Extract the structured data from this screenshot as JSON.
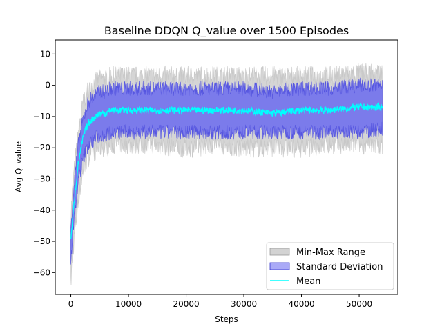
{
  "chart_data": {
    "type": "area",
    "title": "Baseline DDQN Q_value over 1500 Episodes",
    "xlabel": "Steps",
    "ylabel": "Avg Q_value",
    "xlim": [
      -2700,
      56700
    ],
    "ylim": [
      -67,
      14.5
    ],
    "xticks": [
      0,
      10000,
      20000,
      30000,
      40000,
      50000
    ],
    "yticks": [
      -60,
      -50,
      -40,
      -30,
      -20,
      -10,
      0,
      10
    ],
    "grid": false,
    "legend_position": "lower-right",
    "x_end": 54000,
    "x": [
      0,
      200,
      400,
      700,
      1000,
      1300,
      1700,
      2100,
      2600,
      3100,
      3700,
      4300,
      5000,
      6000,
      7000,
      8000,
      10000,
      12000,
      15000,
      18000,
      21000,
      25000,
      30000,
      35000,
      40000,
      45000,
      50000,
      54000
    ],
    "series": [
      {
        "name": "Min-Max Range",
        "color": "#d3d3d3",
        "lower": [
          -64,
          -58,
          -53,
          -47,
          -42,
          -37,
          -32,
          -28,
          -25,
          -23,
          -22,
          -21,
          -20,
          -20,
          -19,
          -19,
          -19,
          -19,
          -19,
          -20,
          -20,
          -19,
          -20,
          -20,
          -20,
          -19,
          -19,
          -19
        ],
        "upper": [
          -42,
          -36,
          -31,
          -25,
          -20,
          -15,
          -10,
          -6,
          -3,
          -1,
          0,
          1,
          2,
          2,
          3,
          3,
          3,
          3,
          3,
          3,
          3,
          3,
          3,
          3,
          3,
          3,
          4,
          4
        ]
      },
      {
        "name": "Standard Deviation",
        "color": "#6b6bef",
        "lower": [
          -57,
          -52,
          -47,
          -41,
          -36,
          -31,
          -27,
          -24,
          -21,
          -19,
          -18,
          -17,
          -16,
          -16,
          -15,
          -15,
          -15,
          -15,
          -15,
          -15,
          -15,
          -15,
          -15,
          -15,
          -15,
          -15,
          -15,
          -14
        ],
        "upper": [
          -46,
          -40,
          -35,
          -29,
          -24,
          -19,
          -15,
          -11,
          -8,
          -5,
          -4,
          -3,
          -2,
          -2,
          -1,
          -1,
          -1,
          -1,
          -1,
          -1,
          -1,
          -1,
          -1,
          -2,
          -1,
          -1,
          0,
          0
        ]
      },
      {
        "name": "Mean",
        "color": "#00ffff",
        "values": [
          -49,
          -46,
          -41,
          -35,
          -30,
          -25,
          -21,
          -17,
          -14,
          -12,
          -11,
          -10,
          -9,
          -9,
          -8,
          -8,
          -8,
          -8,
          -8,
          -8,
          -8,
          -8,
          -8,
          -9,
          -8,
          -8,
          -7,
          -7
        ]
      }
    ]
  }
}
